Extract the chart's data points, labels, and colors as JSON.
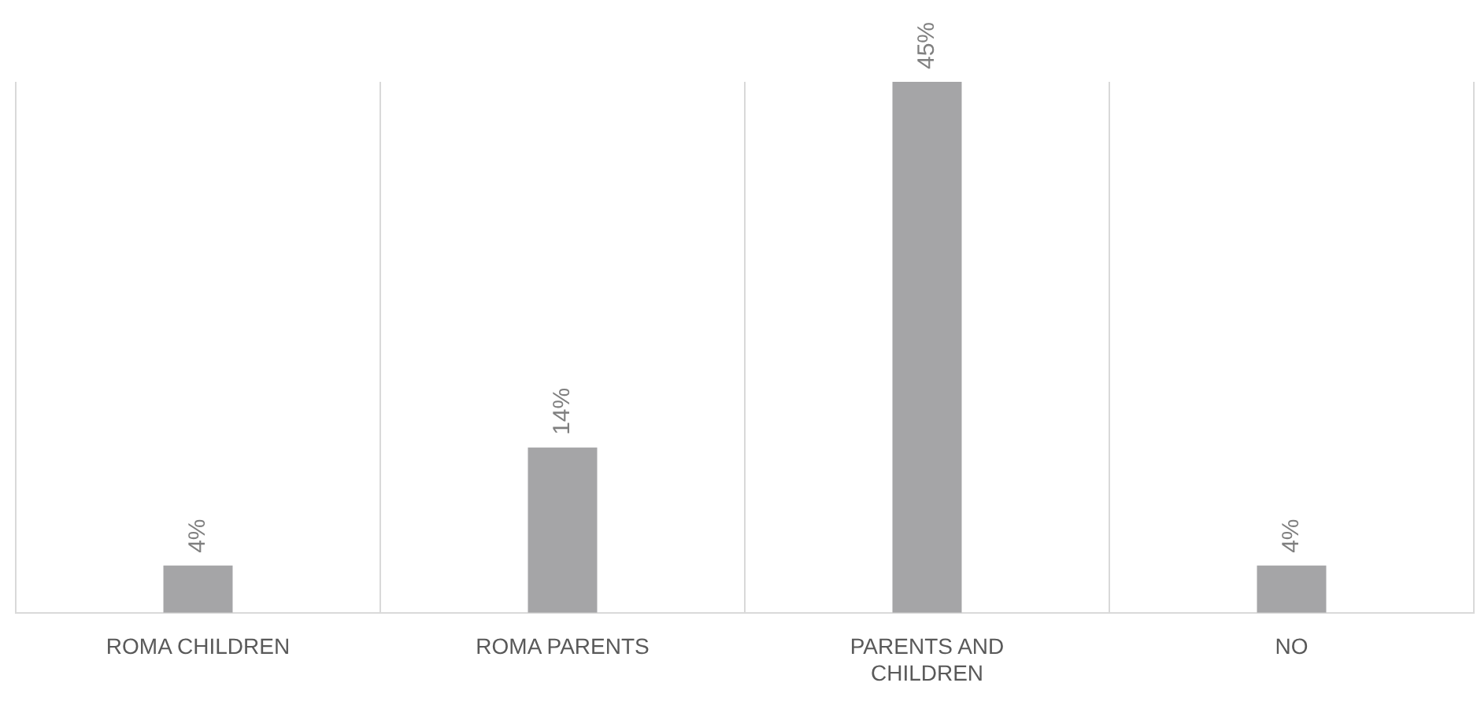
{
  "chart_data": {
    "type": "bar",
    "categories": [
      "ROMA CHILDREN",
      "ROMA PARENTS",
      "PARENTS AND CHILDREN",
      "NO"
    ],
    "values": [
      4,
      14,
      45,
      4
    ],
    "value_labels": [
      "4%",
      "14%",
      "45%",
      "4%"
    ],
    "color": "#a5a5a7",
    "grid": "x",
    "legend": false
  }
}
